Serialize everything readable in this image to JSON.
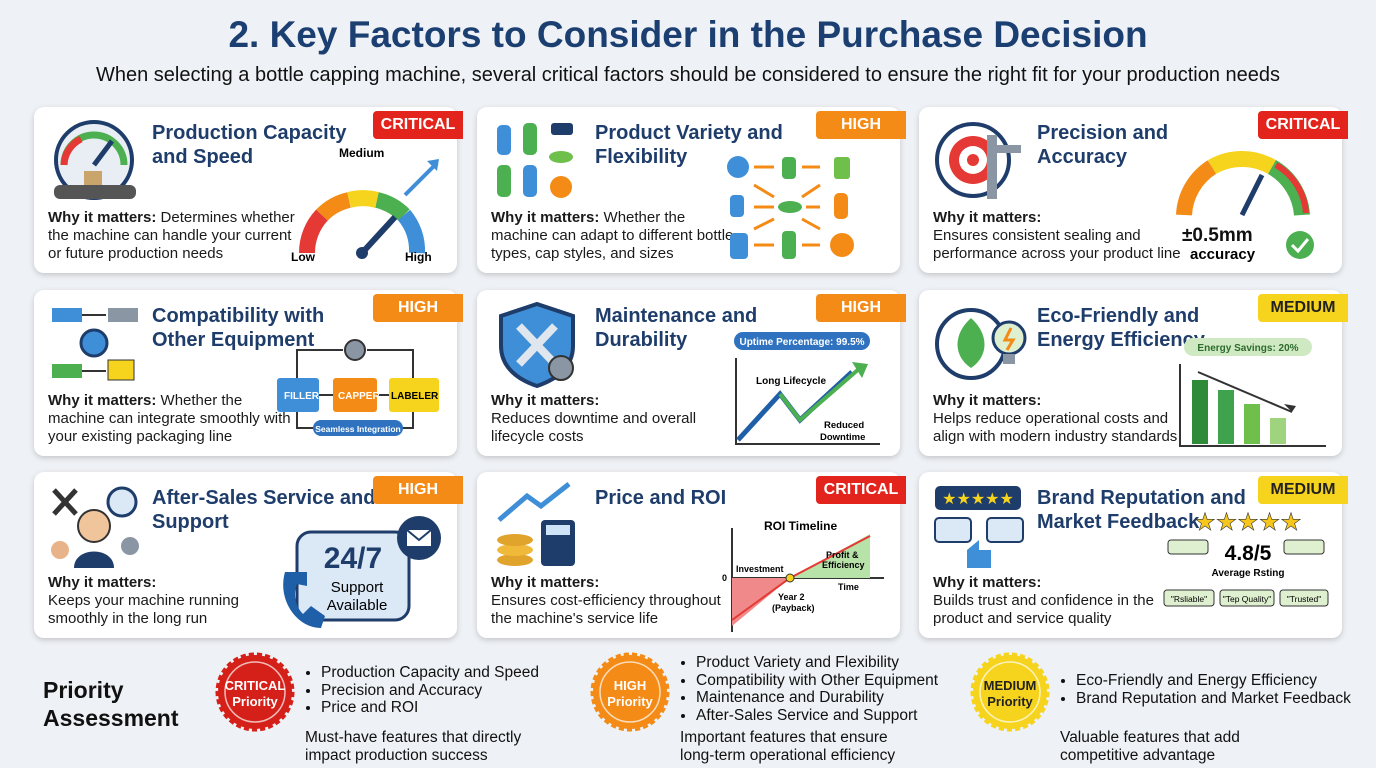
{
  "header": {
    "title": "2. Key Factors to Consider in the Purchase Decision",
    "subtitle": "When selecting a bottle capping machine, several critical factors should be considered to ensure the right fit for your production needs"
  },
  "cards": [
    {
      "title": "Production Capacity and Speed",
      "priority": "CRITICAL",
      "why_label": "Why it matters:",
      "why_text": "Determines whether the machine can handle your current or future production needs",
      "graphic": [
        "Medium",
        "Low",
        "High"
      ]
    },
    {
      "title": "Product Variety and Flexibility",
      "priority": "HIGH",
      "why_label": "Why it matters:",
      "why_text": "Whether the machine can adapt to different bottle types, cap styles, and sizes"
    },
    {
      "title": "Precision and Accuracy",
      "priority": "CRITICAL",
      "why_label": "Why it matters:",
      "why_text": "Ensures consistent sealing and performance across your product line",
      "graphic": [
        "±0.5mm",
        "accuracy"
      ]
    },
    {
      "title": "Compatibility with Other Equipment",
      "priority": "HIGH",
      "why_label": "Why it matters:",
      "why_text": "Whether the machine can integrate smoothly with your existing packaging line",
      "graphic": [
        "FILLER",
        "CAPPER",
        "LABELER",
        "Seamless Integration"
      ]
    },
    {
      "title": "Maintenance and Durability",
      "priority": "HIGH",
      "why_label": "Why it matters:",
      "why_text": "Reduces downtime and overall lifecycle costs",
      "graphic": [
        "Uptime Percentage: 99.5%",
        "Long Lifecycle",
        "Reduced",
        "Downtime"
      ]
    },
    {
      "title": "Eco-Friendly and Energy Efficiency",
      "priority": "MEDIUM",
      "why_label": "Why it matters:",
      "why_text": "Helps reduce operational costs and align with modern industry standards",
      "graphic": [
        "Energy Savings: 20%"
      ]
    },
    {
      "title": "After-Sales Service and Support",
      "priority": "HIGH",
      "why_label": "Why it matters:",
      "why_text": "Keeps your machine running smoothly in the long run",
      "graphic": [
        "24/7",
        "Support",
        "Available"
      ]
    },
    {
      "title": "Price and ROI",
      "priority": "CRITICAL",
      "why_label": "Why it matters:",
      "why_text": "Ensures cost-efficiency throughout the machine's service life",
      "graphic": [
        "ROI Timeline",
        "Investment",
        "0",
        "Year 2",
        "(Payback)",
        "Profit &",
        "Efficiency",
        "Time"
      ]
    },
    {
      "title": "Brand Reputation and Market Feedback",
      "priority": "MEDIUM",
      "why_label": "Why it matters:",
      "why_text": "Builds trust and confidence in the product and service quality",
      "graphic": [
        "4.8/5",
        "Average Rsting",
        "\"Rsliable\"",
        "\"Tep Quality\"",
        "\"Trusted\""
      ]
    }
  ],
  "assessment": {
    "title": "Priority Assessment",
    "groups": [
      {
        "badge": [
          "CRITICAL",
          "Priority"
        ],
        "items": [
          "Production Capacity and Speed",
          "Precision and Accuracy",
          "Price and ROI"
        ],
        "note": "Must-have features that directly impact production success"
      },
      {
        "badge": [
          "HIGH",
          "Priority"
        ],
        "items": [
          "Product Variety and Flexibility",
          "Compatibility with Other Equipment",
          "Maintenance and Durability",
          "After-Sales Service and Support"
        ],
        "note": "Important features that ensure long-term operational efficiency"
      },
      {
        "badge": [
          "MEDIUM",
          "Priority"
        ],
        "items": [
          "Eco-Friendly and Energy Efficiency",
          "Brand Reputation and Market Feedback"
        ],
        "note": "Valuable features that add competitive advantage"
      }
    ]
  }
}
